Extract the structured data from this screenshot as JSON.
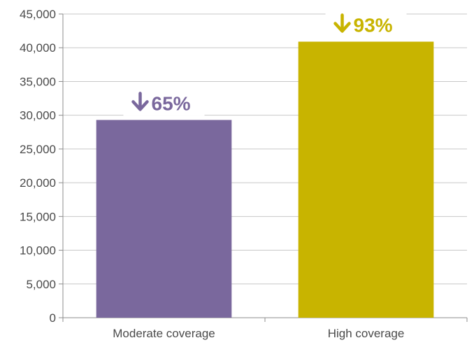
{
  "chart_data": {
    "type": "bar",
    "categories": [
      "Moderate coverage",
      "High coverage"
    ],
    "values": [
      29300,
      40900
    ],
    "data_labels": [
      "65%",
      "93%"
    ],
    "bar_colors": [
      "#7a689d",
      "#c8b400"
    ],
    "annotation_icon": "arrow-down-icon",
    "ylim": [
      0,
      45000
    ],
    "yticks": [
      0,
      5000,
      10000,
      15000,
      20000,
      25000,
      30000,
      35000,
      40000,
      45000
    ],
    "ytick_labels": [
      "0",
      "5,000",
      "10,000",
      "15,000",
      "20,000",
      "25,000",
      "30,000",
      "35,000",
      "40,000",
      "45,000"
    ],
    "grid": true,
    "title": "",
    "xlabel": "",
    "ylabel": ""
  },
  "colors": {
    "gridline": "#c8c8c8",
    "axis": "#8c8c8c",
    "text": "#4a4a4a"
  }
}
